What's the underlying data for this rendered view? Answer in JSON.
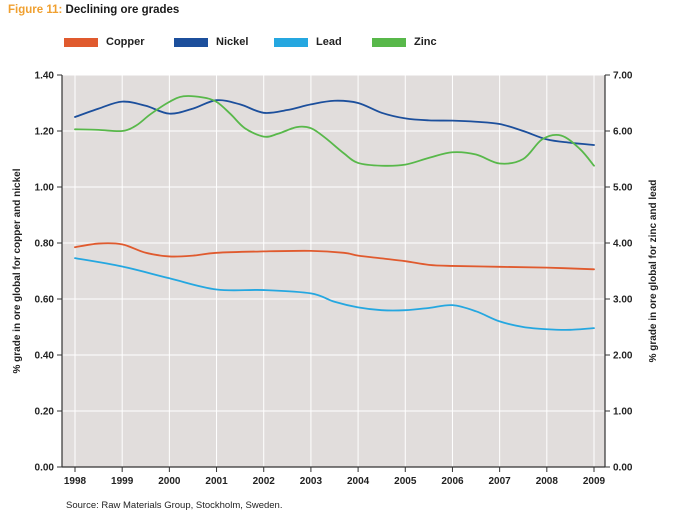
{
  "figure": {
    "label": "Figure 11:",
    "title": "Declining ore grades",
    "source": "Source: Raw Materials Group, Stockholm, Sweden."
  },
  "colors": {
    "plot_background": "#e1dddc",
    "gridline": "#ffffff",
    "axis": "#333333",
    "figure_label": "#f0a030"
  },
  "chart_data": {
    "type": "line",
    "title": "Declining ore grades",
    "xlabel": "",
    "ylabel_left": "% grade in ore global for copper and nickel",
    "ylabel_right": "% grade in ore global for zinc and lead",
    "x_range": [
      1998,
      2009
    ],
    "ylim_left": [
      0,
      1.4
    ],
    "ylim_right": [
      0,
      7
    ],
    "x_ticks": [
      "1998",
      "1999",
      "2000",
      "2001",
      "2002",
      "2003",
      "2004",
      "2005",
      "2006",
      "2007",
      "2008",
      "2009"
    ],
    "y_ticks_left": [
      "0.00",
      "0.20",
      "0.40",
      "0.60",
      "0.80",
      "1.00",
      "1.20",
      "1.40"
    ],
    "y_ticks_right": [
      "0.00",
      "1.00",
      "2.00",
      "3.00",
      "4.00",
      "5.00",
      "6.00",
      "7.00"
    ],
    "grid": true,
    "legend_position": "top",
    "series": [
      {
        "name": "Copper",
        "axis": "left",
        "color": "#e05a2e",
        "x": [
          1998,
          1998.5,
          1999,
          1999.5,
          2000,
          2000.5,
          2001,
          2002,
          2003,
          2003.7,
          2004,
          2004.5,
          2005,
          2005.5,
          2006,
          2007,
          2008,
          2009
        ],
        "y": [
          0.785,
          0.798,
          0.795,
          0.765,
          0.752,
          0.755,
          0.765,
          0.77,
          0.772,
          0.765,
          0.755,
          0.745,
          0.735,
          0.722,
          0.718,
          0.715,
          0.712,
          0.706
        ]
      },
      {
        "name": "Nickel",
        "axis": "left",
        "color": "#1c4f9c",
        "x": [
          1998,
          1998.5,
          1999,
          1999.5,
          2000,
          2000.5,
          2001,
          2001.5,
          2002,
          2002.5,
          2003,
          2003.5,
          2004,
          2004.5,
          2005,
          2005.5,
          2006,
          2006.5,
          2007,
          2007.5,
          2008,
          2008.5,
          2009
        ],
        "y": [
          1.25,
          1.28,
          1.305,
          1.29,
          1.262,
          1.28,
          1.31,
          1.295,
          1.265,
          1.275,
          1.295,
          1.308,
          1.3,
          1.265,
          1.245,
          1.238,
          1.237,
          1.233,
          1.225,
          1.2,
          1.17,
          1.158,
          1.15
        ]
      },
      {
        "name": "Lead",
        "axis": "right",
        "color": "#25a7e0",
        "x": [
          1998,
          1999,
          2000,
          2001,
          2002,
          2003,
          2003.5,
          2004,
          2004.5,
          2005,
          2005.5,
          2006,
          2006.5,
          2007,
          2007.5,
          2008,
          2008.5,
          2009
        ],
        "y": [
          3.73,
          3.58,
          3.37,
          3.17,
          3.16,
          3.1,
          2.95,
          2.85,
          2.8,
          2.8,
          2.84,
          2.89,
          2.78,
          2.6,
          2.5,
          2.46,
          2.45,
          2.48
        ]
      },
      {
        "name": "Zinc",
        "axis": "right",
        "color": "#58b84a",
        "x": [
          1998,
          1998.5,
          1999,
          1999.3,
          1999.6,
          2000,
          2000.3,
          2000.7,
          2001,
          2001.3,
          2001.6,
          2002,
          2002.3,
          2002.7,
          2003,
          2003.3,
          2003.7,
          2004,
          2004.5,
          2005,
          2005.5,
          2006,
          2006.5,
          2007,
          2007.5,
          2007.9,
          2008.3,
          2008.7,
          2009
        ],
        "y": [
          6.03,
          6.02,
          6.0,
          6.1,
          6.3,
          6.52,
          6.62,
          6.6,
          6.52,
          6.3,
          6.05,
          5.9,
          5.95,
          6.07,
          6.05,
          5.88,
          5.6,
          5.43,
          5.38,
          5.4,
          5.52,
          5.62,
          5.58,
          5.42,
          5.5,
          5.85,
          5.92,
          5.68,
          5.38
        ]
      }
    ]
  }
}
